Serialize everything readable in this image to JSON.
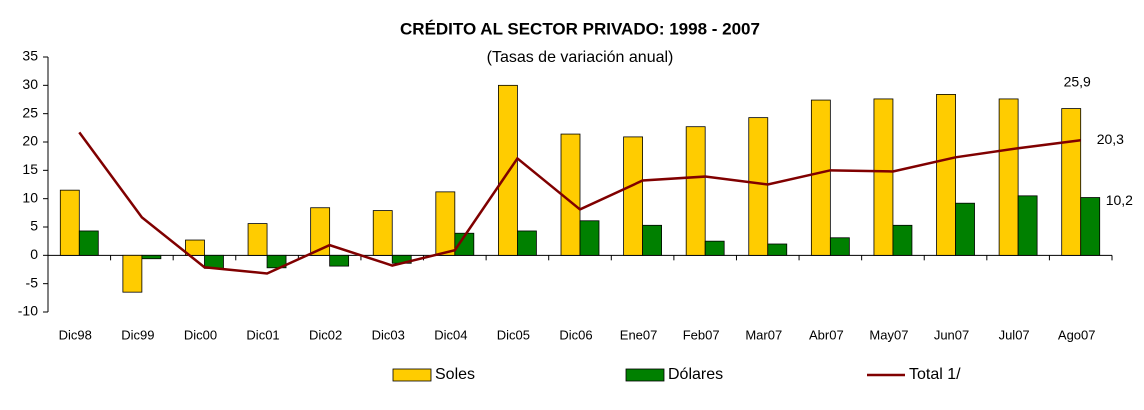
{
  "chart_data": {
    "type": "bar_line",
    "title": "CRÉDITO AL SECTOR PRIVADO: 1998 - 2007",
    "subtitle": "(Tasas de variación anual)",
    "categories": [
      "Dic98",
      "Dic99",
      "Dic00",
      "Dic01",
      "Dic02",
      "Dic03",
      "Dic04",
      "Dic05",
      "Dic06",
      "Ene07",
      "Feb07",
      "Mar07",
      "Abr07",
      "May07",
      "Jun07",
      "Jul07",
      "Ago07"
    ],
    "series": [
      {
        "name": "Soles",
        "type": "bar",
        "color": "#ffcc00",
        "values": [
          11.5,
          -6.5,
          2.7,
          5.6,
          8.4,
          7.9,
          11.2,
          30.0,
          21.4,
          20.9,
          22.7,
          24.3,
          27.4,
          27.6,
          28.4,
          27.6,
          25.9
        ],
        "value_labels": [
          null,
          null,
          null,
          null,
          null,
          null,
          null,
          null,
          null,
          null,
          null,
          null,
          null,
          null,
          null,
          null,
          "25,9"
        ]
      },
      {
        "name": "Dólares",
        "type": "bar",
        "color": "#008000",
        "values": [
          4.3,
          -0.6,
          -2.3,
          -2.2,
          -1.9,
          -1.4,
          3.9,
          4.3,
          6.1,
          5.3,
          2.5,
          2.0,
          3.1,
          5.3,
          9.2,
          10.5,
          10.2
        ],
        "value_labels": [
          null,
          null,
          null,
          null,
          null,
          null,
          null,
          null,
          null,
          null,
          null,
          null,
          null,
          null,
          null,
          null,
          "10,2"
        ]
      },
      {
        "name": "Total 1/",
        "type": "line",
        "color": "#800000",
        "values": [
          21.7,
          6.7,
          -2.1,
          -3.2,
          1.8,
          -1.8,
          0.9,
          17.1,
          8.1,
          13.2,
          13.9,
          12.5,
          15.0,
          14.8,
          17.3,
          18.9,
          20.3
        ],
        "value_labels": [
          null,
          null,
          null,
          null,
          null,
          null,
          null,
          null,
          null,
          null,
          null,
          null,
          null,
          null,
          null,
          null,
          "20,3"
        ]
      }
    ],
    "ylim": [
      -10,
      35
    ],
    "yticks": [
      -10,
      -5,
      0,
      5,
      10,
      15,
      20,
      25,
      30,
      35
    ],
    "legend": "bottom"
  }
}
